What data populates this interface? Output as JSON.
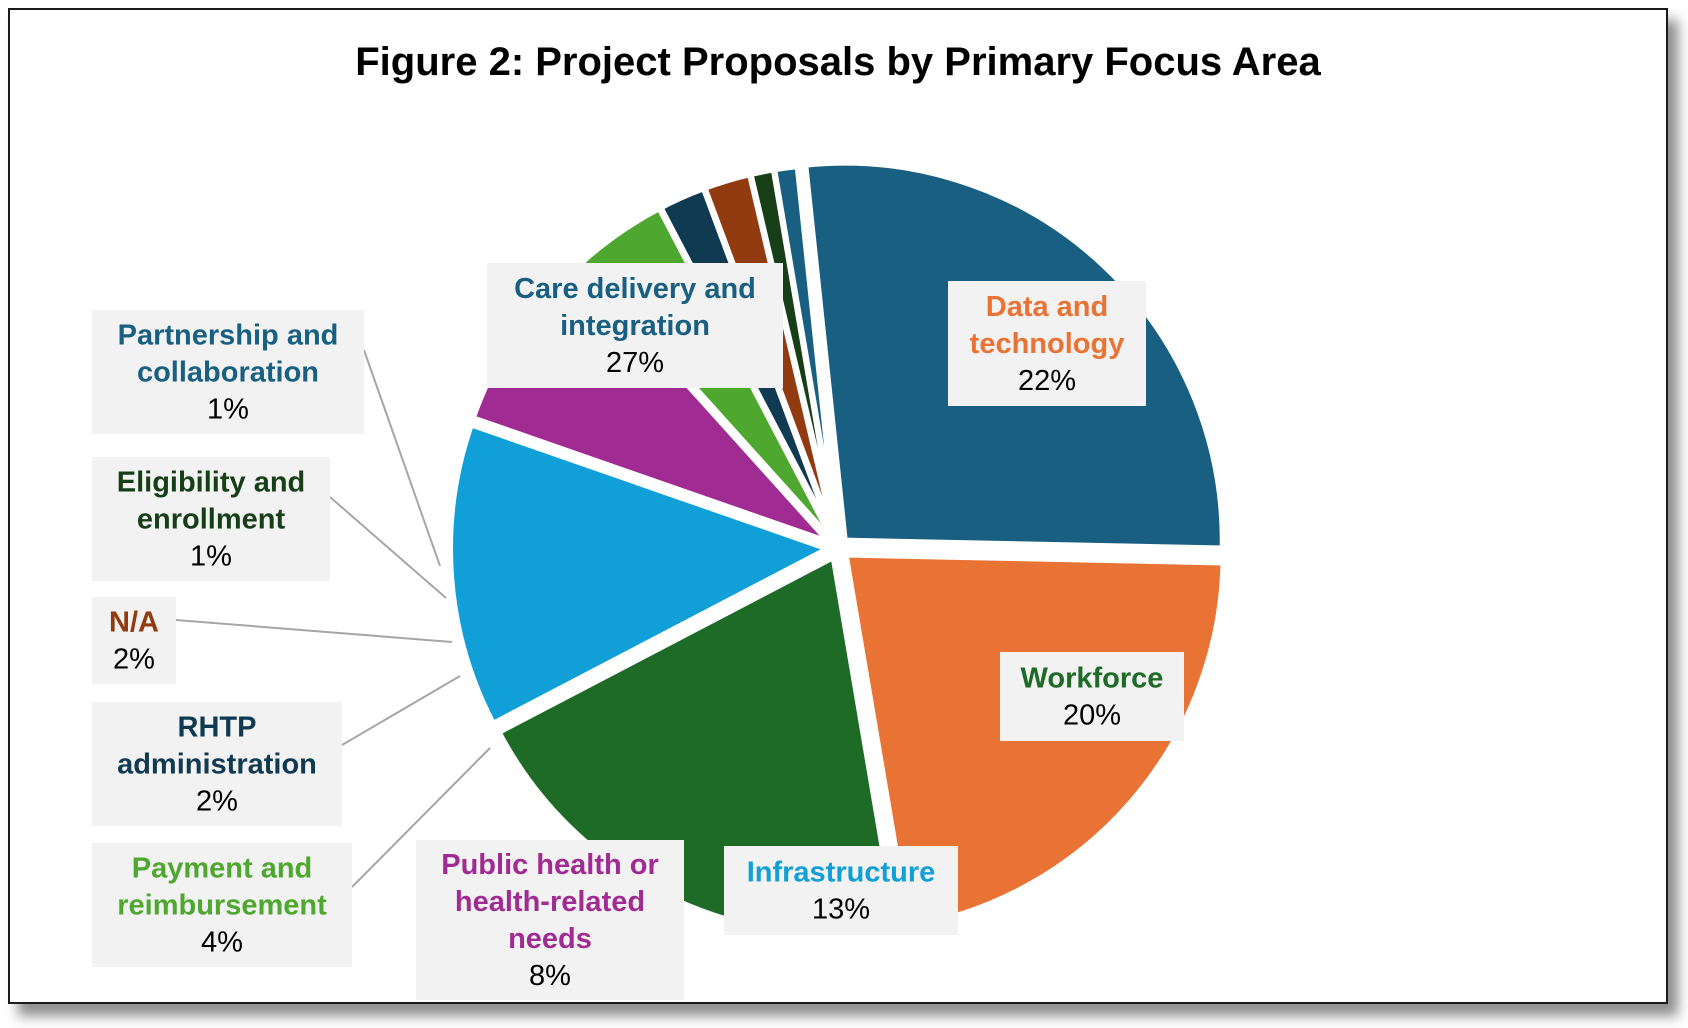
{
  "chart_data": {
    "type": "pie",
    "title": "Figure 2: Project Proposals by Primary Focus Area",
    "slices": [
      {
        "label": "Care delivery and integration",
        "label_lines": [
          "Care delivery and",
          "integration"
        ],
        "value": 27,
        "value_label": "27%",
        "color": "#185F82"
      },
      {
        "label": "Data and technology",
        "label_lines": [
          "Data and",
          "technology"
        ],
        "value": 22,
        "value_label": "22%",
        "color": "#E97334"
      },
      {
        "label": "Workforce",
        "label_lines": [
          "Workforce"
        ],
        "value": 20,
        "value_label": "20%",
        "color": "#1D6B27"
      },
      {
        "label": "Infrastructure",
        "label_lines": [
          "Infrastructure"
        ],
        "value": 13,
        "value_label": "13%",
        "color": "#119FD8"
      },
      {
        "label": "Public health or health-related needs",
        "label_lines": [
          "Public health or",
          "health-related",
          "needs"
        ],
        "value": 8,
        "value_label": "8%",
        "color": "#A02B92"
      },
      {
        "label": "Payment and reimbursement",
        "label_lines": [
          "Payment and",
          "reimbursement"
        ],
        "value": 4,
        "value_label": "4%",
        "color": "#4EA72E"
      },
      {
        "label": "RHTP administration",
        "label_lines": [
          "RHTP",
          "administration"
        ],
        "value": 2,
        "value_label": "2%",
        "color": "#0F3A52"
      },
      {
        "label": "N/A",
        "label_lines": [
          "N/A"
        ],
        "value": 2,
        "value_label": "2%",
        "color": "#933B10"
      },
      {
        "label": "Eligibility and enrollment",
        "label_lines": [
          "Eligibility and",
          "enrollment"
        ],
        "value": 1,
        "value_label": "1%",
        "color": "#173F17"
      },
      {
        "label": "Partnership and collaboration",
        "label_lines": [
          "Partnership and",
          "collaboration"
        ],
        "value": 1,
        "value_label": "1%",
        "color": "#185F82"
      }
    ],
    "label_text_colors": [
      "#185F82",
      "#E97334",
      "#1D6B27",
      "#119FD8",
      "#A02B92",
      "#4EA72E",
      "#0F3A52",
      "#933B10",
      "#173F17",
      "#185F82"
    ],
    "legend": "none",
    "data_labels": "category name and percentage in callout boxes"
  }
}
